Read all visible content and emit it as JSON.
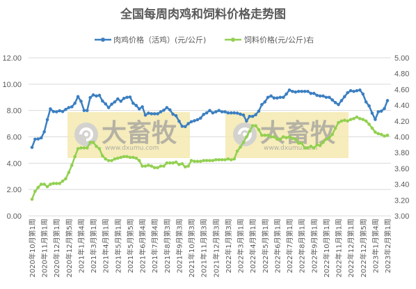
{
  "chart_data": {
    "type": "line",
    "title": "全国每周肉鸡和饲料价格走势图",
    "legend": "top",
    "grid": true,
    "x_tick_labels": [
      "2020年10月第1周",
      "2020年11月第1周",
      "2020年12月第1周",
      "2020年12月第5周",
      "2021年1月第4周",
      "2021年3月第1周",
      "2021年4月第1周",
      "2021年5月第1周",
      "2021年5月第5周",
      "2021年6月第4周",
      "2021年7月第4周",
      "2021年8月第3周",
      "2021年9月第3周",
      "2021年10月第3周",
      "2021年11月第3周",
      "2021年12月第3周",
      "2022年1月第3周",
      "2022年3月第1周",
      "2022年4月第1周",
      "2022年5月第1周",
      "2022年6月第1周",
      "2022年7月第1周",
      "2022年8月第1周",
      "2022年9月第1周",
      "2022年10月第1周",
      "2022年11月第1周",
      "2022年12月第1周",
      "2022年12月第5周",
      "2023年1月第4周",
      "2023年2月第1周"
    ],
    "y_left": {
      "range": [
        0,
        12
      ],
      "ticks": [
        "0.00",
        "2.00",
        "4.00",
        "6.00",
        "8.00",
        "10.00",
        "12.00"
      ]
    },
    "y_right": {
      "range": [
        3,
        5
      ],
      "ticks": [
        "3.00",
        "3.20",
        "3.40",
        "3.60",
        "3.80",
        "4.00",
        "4.20",
        "4.40",
        "4.60",
        "4.80",
        "5.00"
      ]
    },
    "series": [
      {
        "name": "肉鸡价格（活鸡）(元/公斤)",
        "axis": "left",
        "color": "#3b7fc1",
        "values": [
          5.2,
          5.82,
          5.84,
          5.92,
          6.38,
          7.3,
          8.12,
          7.92,
          7.9,
          7.98,
          7.92,
          8.08,
          8.22,
          8.28,
          8.55,
          9.05,
          8.7,
          8.0,
          8.0,
          8.98,
          9.18,
          9.1,
          9.15,
          8.72,
          8.5,
          8.22,
          8.48,
          8.65,
          8.88,
          8.7,
          8.92,
          9.0,
          9.02,
          8.55,
          8.38,
          8.12,
          8.28,
          7.65,
          7.8,
          7.75,
          7.75,
          7.75,
          7.9,
          8.02,
          8.22,
          8.05,
          7.72,
          7.6,
          7.18,
          6.8,
          6.78,
          7.0,
          7.15,
          7.22,
          7.3,
          7.42,
          7.7,
          7.82,
          8.0,
          7.82,
          7.9,
          8.0,
          7.9,
          7.9,
          7.82,
          7.82,
          7.82,
          7.8,
          7.72,
          7.65,
          7.2,
          7.55,
          7.55,
          7.68,
          7.95,
          8.45,
          8.65,
          9.0,
          9.1,
          8.95,
          8.95,
          9.0,
          9.0,
          9.25,
          9.55,
          9.45,
          9.4,
          9.45,
          9.45,
          9.45,
          9.45,
          9.3,
          9.3,
          9.15,
          9.1,
          9.1,
          9.0,
          9.0,
          8.8,
          8.6,
          8.45,
          8.75,
          9.05,
          9.35,
          9.5,
          9.45,
          9.5,
          9.55,
          9.25,
          8.65,
          8.35,
          7.8,
          7.32,
          7.9,
          7.95,
          8.15,
          8.75
        ]
      },
      {
        "name": "饲料价格(元/公斤)右",
        "axis": "right",
        "color": "#92d050",
        "values": [
          3.21,
          3.31,
          3.36,
          3.4,
          3.4,
          3.37,
          3.4,
          3.41,
          3.41,
          3.41,
          3.44,
          3.47,
          3.55,
          3.64,
          3.75,
          3.85,
          3.86,
          3.86,
          3.86,
          3.93,
          3.93,
          3.88,
          3.85,
          3.76,
          3.72,
          3.7,
          3.7,
          3.72,
          3.73,
          3.74,
          3.75,
          3.75,
          3.74,
          3.74,
          3.73,
          3.7,
          3.63,
          3.63,
          3.64,
          3.63,
          3.61,
          3.61,
          3.63,
          3.63,
          3.67,
          3.67,
          3.67,
          3.68,
          3.65,
          3.66,
          3.62,
          3.63,
          3.7,
          3.69,
          3.69,
          3.69,
          3.7,
          3.7,
          3.7,
          3.7,
          3.71,
          3.71,
          3.71,
          3.71,
          3.72,
          3.71,
          3.72,
          3.82,
          3.87,
          3.93,
          4.0,
          4.07,
          4.14,
          4.14,
          4.09,
          4.02,
          4.02,
          4.02,
          4.0,
          4.0,
          3.97,
          3.97,
          4.0,
          3.99,
          4.0,
          3.98,
          3.97,
          3.92,
          3.92,
          3.86,
          3.86,
          3.88,
          3.86,
          3.9,
          3.89,
          3.93,
          3.97,
          3.99,
          4.03,
          4.11,
          4.18,
          4.2,
          4.21,
          4.2,
          4.22,
          4.23,
          4.25,
          4.23,
          4.22,
          4.2,
          4.16,
          4.11,
          4.06,
          4.04,
          4.03,
          4.01,
          4.02
        ]
      }
    ]
  },
  "watermark": {
    "brand": "大畜牧",
    "site": "www.dxumu.com",
    "background_color": "#f5e9b0",
    "text_color": "#9a9a9a"
  }
}
